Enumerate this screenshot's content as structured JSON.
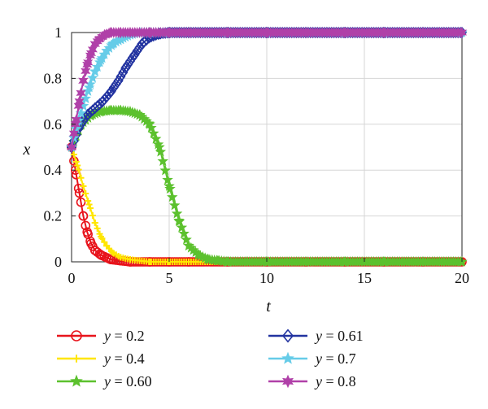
{
  "chart_data": {
    "type": "line",
    "xlabel": "t",
    "ylabel": "x",
    "xlim": [
      0,
      20
    ],
    "ylim": [
      0,
      1
    ],
    "x_ticks": [
      "0",
      "5",
      "10",
      "15",
      "20"
    ],
    "y_ticks": [
      "0",
      "0.2",
      "0.4",
      "0.6",
      "0.8",
      "1"
    ],
    "grid": true,
    "legend_position": "bottom",
    "series": [
      {
        "name": "y = 0.2",
        "color": "#e8141c",
        "marker": "circle",
        "x": [
          0,
          0.2,
          0.4,
          0.6,
          0.8,
          1.0,
          1.2,
          1.5,
          2.0,
          2.5,
          3,
          4,
          5,
          6,
          8,
          10,
          12,
          14,
          16,
          18,
          20
        ],
        "y": [
          0.5,
          0.4,
          0.3,
          0.2,
          0.13,
          0.08,
          0.05,
          0.03,
          0.01,
          0.005,
          0,
          0,
          0,
          0,
          0,
          0,
          0,
          0,
          0,
          0,
          0
        ]
      },
      {
        "name": "y = 0.4",
        "color": "#ffe600",
        "marker": "plus",
        "x": [
          0,
          0.3,
          0.6,
          0.9,
          1.2,
          1.5,
          1.8,
          2.1,
          2.5,
          3,
          4,
          5,
          6,
          8,
          10,
          12,
          14,
          16,
          18,
          20
        ],
        "y": [
          0.5,
          0.42,
          0.33,
          0.25,
          0.17,
          0.11,
          0.07,
          0.04,
          0.02,
          0.01,
          0,
          0,
          0,
          0,
          0,
          0,
          0,
          0,
          0,
          0
        ]
      },
      {
        "name": "y = 0.60",
        "color": "#5cc12e",
        "marker": "star",
        "x": [
          0,
          0.5,
          1,
          1.5,
          2,
          2.5,
          3,
          3.5,
          4,
          4.5,
          5,
          5.5,
          6,
          6.5,
          7,
          7.5,
          8,
          9,
          10,
          12,
          14,
          16,
          18,
          20
        ],
        "y": [
          0.5,
          0.6,
          0.64,
          0.655,
          0.66,
          0.66,
          0.655,
          0.64,
          0.6,
          0.5,
          0.33,
          0.18,
          0.07,
          0.03,
          0.01,
          0.005,
          0,
          0,
          0,
          0,
          0,
          0,
          0,
          0
        ]
      },
      {
        "name": "y = 0.61",
        "color": "#2233a0",
        "marker": "diamond",
        "x": [
          0,
          0.4,
          0.8,
          1.2,
          1.6,
          2.0,
          2.4,
          2.8,
          3.2,
          3.6,
          4.0,
          4.5,
          5,
          6,
          8,
          10,
          12,
          14,
          16,
          18,
          20
        ],
        "y": [
          0.5,
          0.59,
          0.64,
          0.67,
          0.7,
          0.74,
          0.79,
          0.85,
          0.9,
          0.95,
          0.98,
          0.995,
          1,
          1,
          1,
          1,
          1,
          1,
          1,
          1,
          1
        ]
      },
      {
        "name": "y = 0.7",
        "color": "#66cce8",
        "marker": "star",
        "x": [
          0,
          0.3,
          0.6,
          0.9,
          1.2,
          1.5,
          1.8,
          2.1,
          2.5,
          3,
          3.5,
          4,
          5,
          6,
          8,
          10,
          12,
          14,
          16,
          18,
          20
        ],
        "y": [
          0.5,
          0.6,
          0.68,
          0.76,
          0.83,
          0.88,
          0.92,
          0.95,
          0.97,
          0.99,
          1,
          1,
          1,
          1,
          1,
          1,
          1,
          1,
          1,
          1,
          1
        ]
      },
      {
        "name": "y = 0.8",
        "color": "#b040a8",
        "marker": "hexstar",
        "x": [
          0,
          0.2,
          0.4,
          0.6,
          0.8,
          1.0,
          1.2,
          1.4,
          1.7,
          2,
          2.5,
          3,
          4,
          5,
          6,
          8,
          10,
          12,
          14,
          16,
          18,
          20
        ],
        "y": [
          0.5,
          0.6,
          0.7,
          0.79,
          0.86,
          0.91,
          0.95,
          0.97,
          0.99,
          1,
          1,
          1,
          1,
          1,
          1,
          1,
          1,
          1,
          1,
          1,
          1,
          1
        ]
      }
    ]
  }
}
